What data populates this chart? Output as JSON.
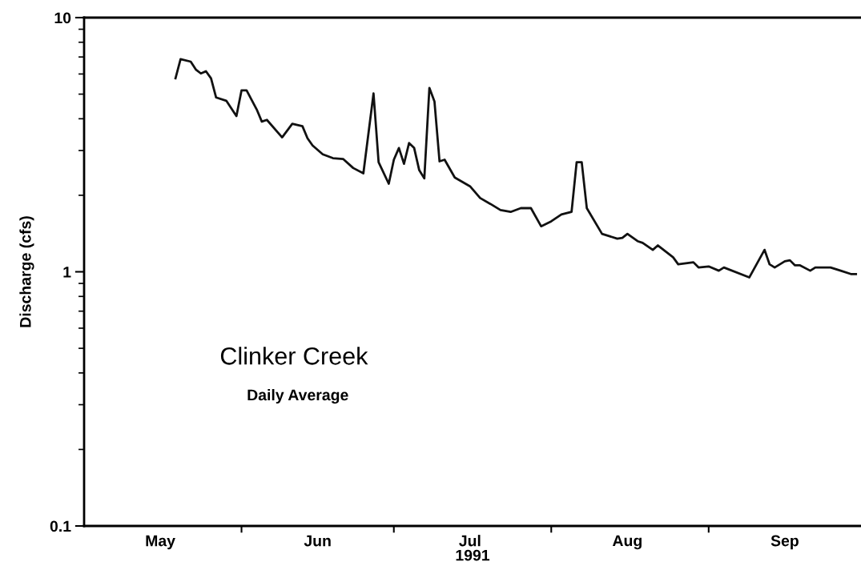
{
  "chart_data": {
    "type": "line",
    "xlabel": "1991",
    "ylabel": "Discharge (cfs)",
    "annotations": [
      "Clinker Creek",
      "Daily Average"
    ],
    "log": "y",
    "ylim": [
      0.1,
      10
    ],
    "yticks": [
      0.1,
      1,
      10
    ],
    "grid": false,
    "legend": false,
    "marker": "none",
    "line_style": "solid",
    "xlim": [
      "1991-05-01",
      "1991-10-01"
    ],
    "xticks": [
      {
        "value": "1991-05-16",
        "label": "May"
      },
      {
        "value": "1991-06-01",
        "label": null
      },
      {
        "value": "1991-06-16",
        "label": "Jun"
      },
      {
        "value": "1991-07-01",
        "label": null
      },
      {
        "value": "1991-07-16",
        "label": "Jul"
      },
      {
        "value": "1991-08-01",
        "label": null
      },
      {
        "value": "1991-08-16",
        "label": "Aug"
      },
      {
        "value": "1991-09-01",
        "label": null
      },
      {
        "value": "1991-09-16",
        "label": "Sep"
      }
    ],
    "series": [
      {
        "color": "#111111",
        "x": [
          "1991-05-19",
          "1991-05-20",
          "1991-05-22",
          "1991-05-23",
          "1991-05-24",
          "1991-05-25",
          "1991-05-26",
          "1991-05-27",
          "1991-05-29",
          "1991-05-31",
          "1991-06-01",
          "1991-06-02",
          "1991-06-04",
          "1991-06-05",
          "1991-06-06",
          "1991-06-09",
          "1991-06-11",
          "1991-06-13",
          "1991-06-14",
          "1991-06-15",
          "1991-06-17",
          "1991-06-19",
          "1991-06-21",
          "1991-06-23",
          "1991-06-25",
          "1991-06-27",
          "1991-06-28",
          "1991-06-30",
          "1991-07-01",
          "1991-07-02",
          "1991-07-03",
          "1991-07-04",
          "1991-07-05",
          "1991-07-06",
          "1991-07-07",
          "1991-07-08",
          "1991-07-09",
          "1991-07-10",
          "1991-07-11",
          "1991-07-13",
          "1991-07-16",
          "1991-07-18",
          "1991-07-20",
          "1991-07-22",
          "1991-07-24",
          "1991-07-26",
          "1991-07-28",
          "1991-07-30",
          "1991-08-01",
          "1991-08-03",
          "1991-08-05",
          "1991-08-06",
          "1991-08-07",
          "1991-08-08",
          "1991-08-11",
          "1991-08-14",
          "1991-08-15",
          "1991-08-16",
          "1991-08-18",
          "1991-08-19",
          "1991-08-21",
          "1991-08-22",
          "1991-08-25",
          "1991-08-26",
          "1991-08-29",
          "1991-08-30",
          "1991-09-01",
          "1991-09-03",
          "1991-09-04",
          "1991-09-09",
          "1991-09-12",
          "1991-09-13",
          "1991-09-14",
          "1991-09-16",
          "1991-09-17",
          "1991-09-18",
          "1991-09-19",
          "1991-09-21",
          "1991-09-22",
          "1991-09-25",
          "1991-09-27",
          "1991-09-29",
          "1991-09-30"
        ],
        "values": [
          5.77,
          6.86,
          6.71,
          6.25,
          6.03,
          6.15,
          5.77,
          4.85,
          4.71,
          4.1,
          5.17,
          5.17,
          4.35,
          3.9,
          3.96,
          3.38,
          3.82,
          3.74,
          3.35,
          3.14,
          2.9,
          2.8,
          2.78,
          2.56,
          2.44,
          5.03,
          2.7,
          2.22,
          2.76,
          3.07,
          2.66,
          3.21,
          3.07,
          2.51,
          2.33,
          5.29,
          4.68,
          2.72,
          2.76,
          2.35,
          2.17,
          1.95,
          1.85,
          1.75,
          1.72,
          1.78,
          1.78,
          1.51,
          1.58,
          1.68,
          1.72,
          2.7,
          2.7,
          1.78,
          1.41,
          1.35,
          1.36,
          1.41,
          1.32,
          1.3,
          1.22,
          1.27,
          1.14,
          1.07,
          1.09,
          1.04,
          1.05,
          1.01,
          1.04,
          0.95,
          1.22,
          1.07,
          1.04,
          1.1,
          1.11,
          1.06,
          1.06,
          1.01,
          1.04,
          1.04,
          1.01,
          0.98,
          0.98
        ]
      }
    ]
  }
}
